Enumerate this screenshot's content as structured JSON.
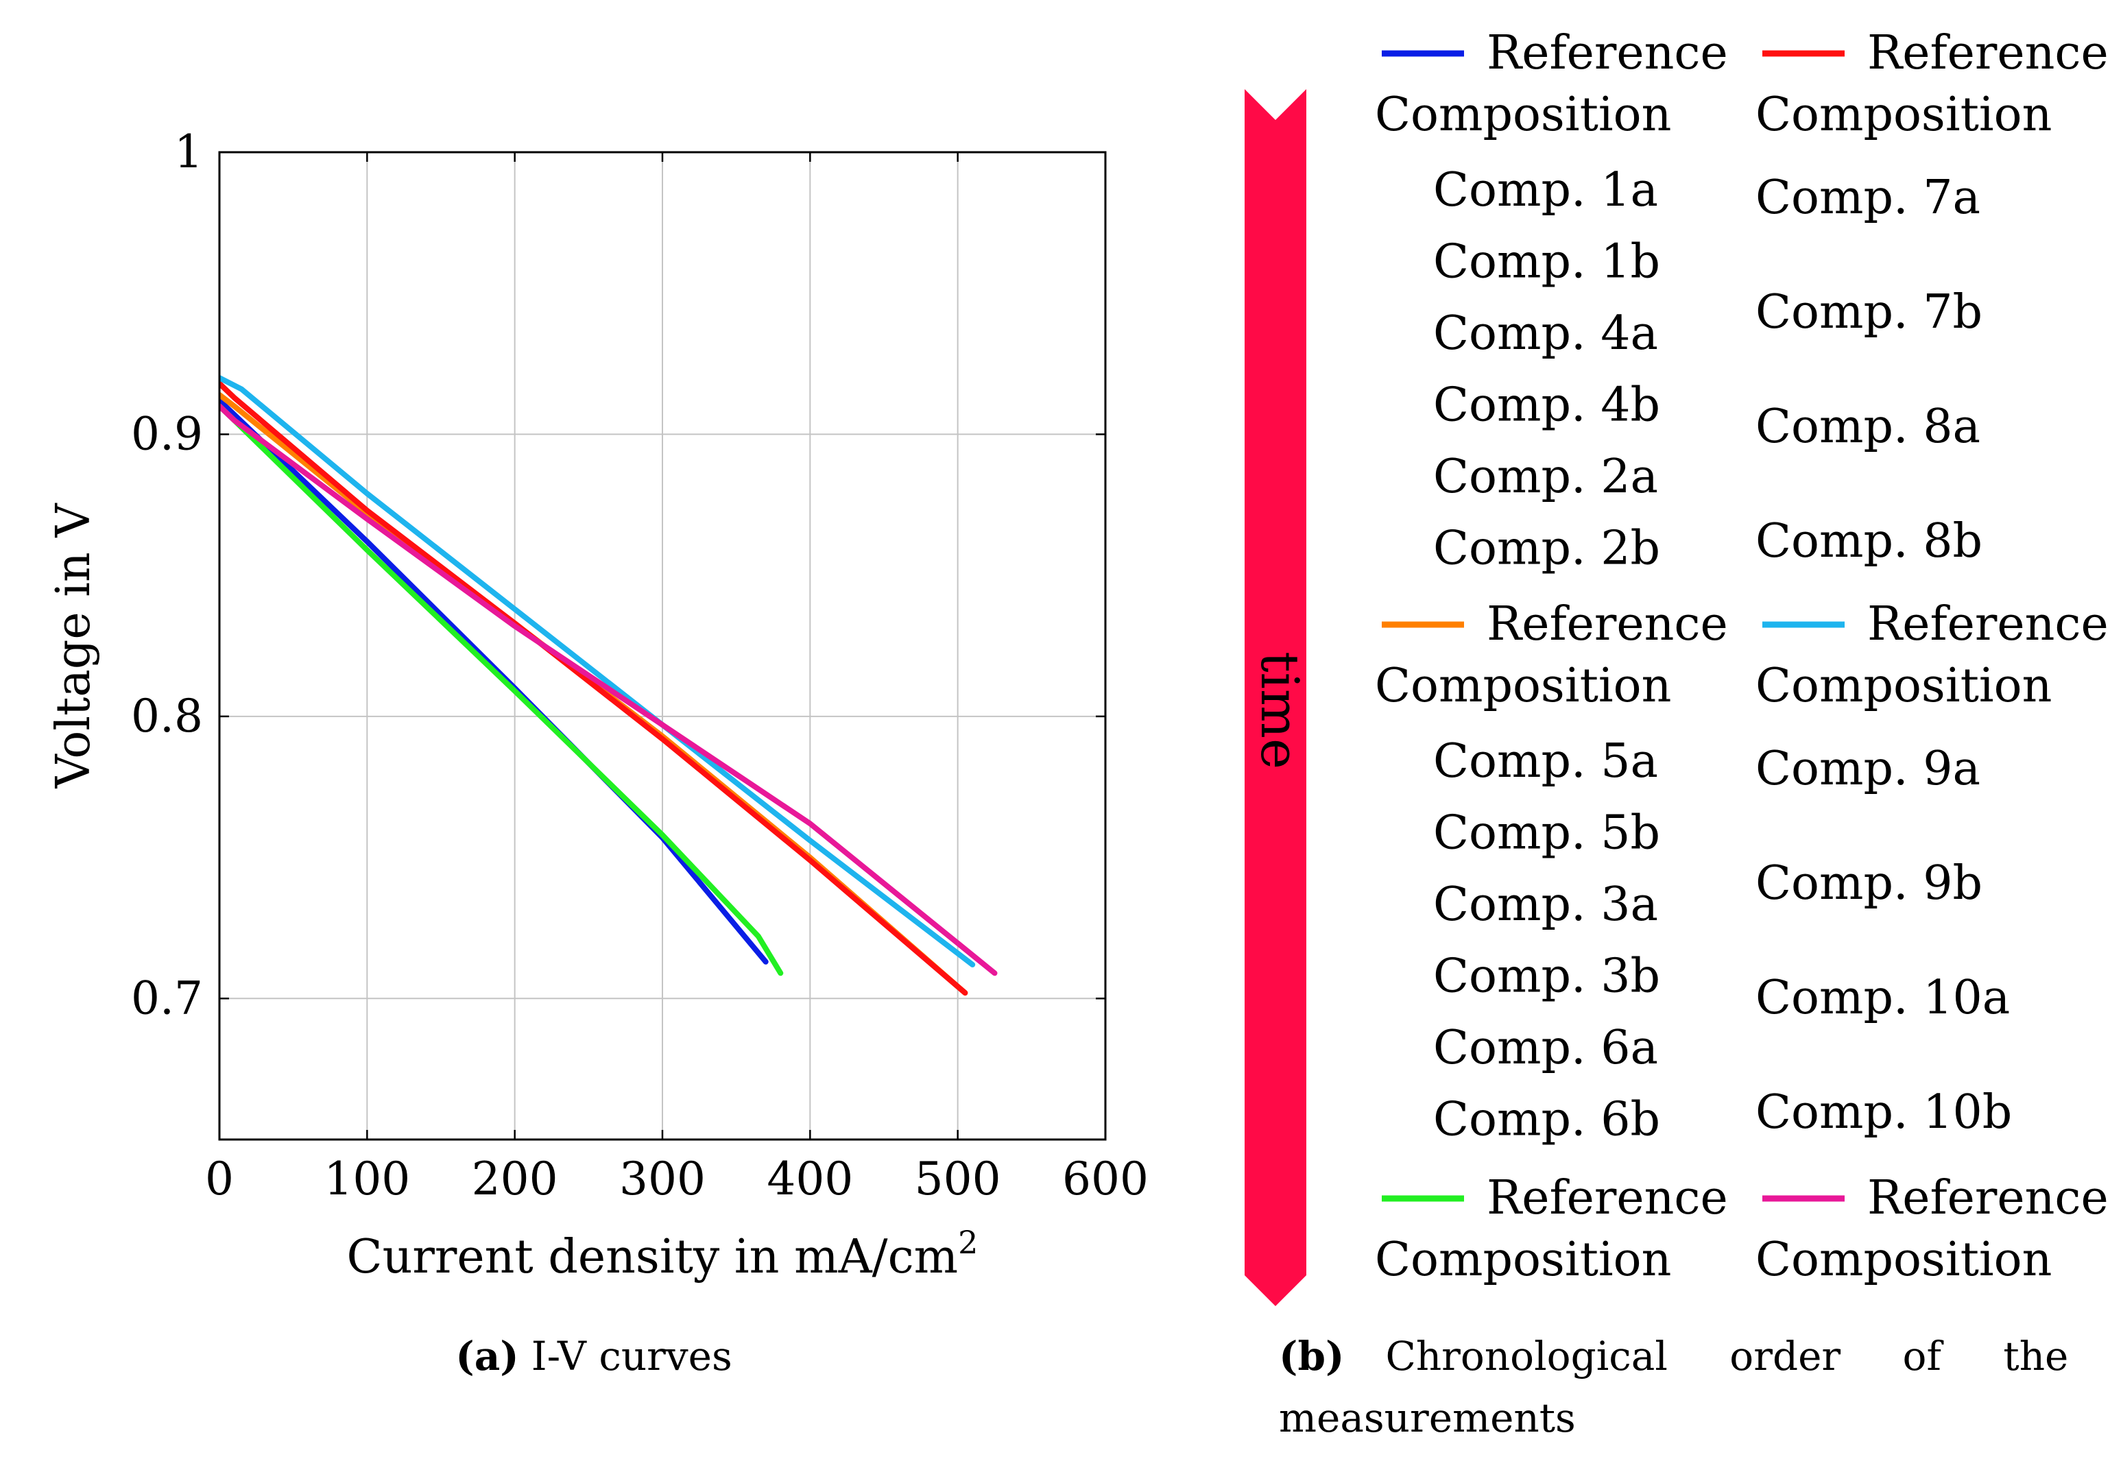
{
  "chart_data": {
    "type": "line",
    "xlabel": "Current density in mA/cm",
    "xlabel_superscript": "2",
    "ylabel": "Voltage in V",
    "xlim": [
      0,
      600
    ],
    "ylim": [
      0.65,
      1.0
    ],
    "x_ticks": [
      "0",
      "100",
      "200",
      "300",
      "400",
      "500",
      "600"
    ],
    "y_ticks": [
      "0.7",
      "0.8",
      "0.9",
      "1"
    ],
    "grid": true,
    "series": [
      {
        "color": "#0a1ee6",
        "points": [
          [
            0,
            0.912
          ],
          [
            10,
            0.907
          ],
          [
            100,
            0.862
          ],
          [
            200,
            0.81
          ],
          [
            300,
            0.757
          ],
          [
            370,
            0.713
          ]
        ]
      },
      {
        "color": "#ff8000",
        "points": [
          [
            0,
            0.914
          ],
          [
            10,
            0.91
          ],
          [
            100,
            0.872
          ],
          [
            200,
            0.833
          ],
          [
            300,
            0.793
          ],
          [
            400,
            0.75
          ],
          [
            505,
            0.702
          ]
        ]
      },
      {
        "color": "#22ef22",
        "points": [
          [
            0,
            0.91
          ],
          [
            10,
            0.905
          ],
          [
            100,
            0.859
          ],
          [
            200,
            0.809
          ],
          [
            300,
            0.758
          ],
          [
            365,
            0.722
          ],
          [
            380,
            0.709
          ]
        ]
      },
      {
        "color": "#ff1010",
        "points": [
          [
            0,
            0.918
          ],
          [
            10,
            0.913
          ],
          [
            100,
            0.873
          ],
          [
            200,
            0.833
          ],
          [
            300,
            0.792
          ],
          [
            400,
            0.749
          ],
          [
            505,
            0.702
          ]
        ]
      },
      {
        "color": "#1eb4ee",
        "points": [
          [
            0,
            0.92
          ],
          [
            15,
            0.916
          ],
          [
            100,
            0.879
          ],
          [
            200,
            0.838
          ],
          [
            300,
            0.797
          ],
          [
            400,
            0.756
          ],
          [
            510,
            0.712
          ]
        ]
      },
      {
        "color": "#e81898",
        "points": [
          [
            0,
            0.91
          ],
          [
            10,
            0.905
          ],
          [
            100,
            0.87
          ],
          [
            200,
            0.832
          ],
          [
            300,
            0.797
          ],
          [
            400,
            0.762
          ],
          [
            525,
            0.709
          ]
        ]
      }
    ]
  },
  "caption_a": {
    "label": "(a)",
    "text": "I-V curves"
  },
  "caption_b": {
    "label": "(b)",
    "text_line1": "Chronological order of the",
    "text_line2": "measurements"
  },
  "timeline": {
    "label": "time",
    "color": "#ff0a47"
  },
  "legend": {
    "left": {
      "ref1": {
        "line1": "Reference",
        "line2": "Composition",
        "color": "#0a1ee6"
      },
      "group1": [
        "Comp. 1a",
        "Comp. 1b",
        "Comp. 4a",
        "Comp. 4b",
        "Comp. 2a",
        "Comp. 2b"
      ],
      "ref2": {
        "line1": "Reference",
        "line2": "Composition",
        "color": "#ff8000"
      },
      "group2": [
        "Comp. 5a",
        "Comp. 5b",
        "Comp. 3a",
        "Comp. 3b",
        "Comp. 6a",
        "Comp. 6b"
      ],
      "ref3": {
        "line1": "Reference",
        "line2": "Composition",
        "color": "#22ef22"
      }
    },
    "right": {
      "ref1": {
        "line1": "Reference",
        "line2": "Composition",
        "color": "#ff1010"
      },
      "group1": [
        "Comp.  7a",
        "Comp.  7b",
        "Comp.  8a",
        "Comp.  8b"
      ],
      "ref2": {
        "line1": "Reference",
        "line2": "Composition",
        "color": "#1eb4ee"
      },
      "group2": [
        "Comp.  9a",
        "Comp.  9b",
        "Comp.  10a",
        "Comp.  10b"
      ],
      "ref3": {
        "line1": "Reference",
        "line2": "Composition",
        "color": "#e81898"
      }
    }
  }
}
